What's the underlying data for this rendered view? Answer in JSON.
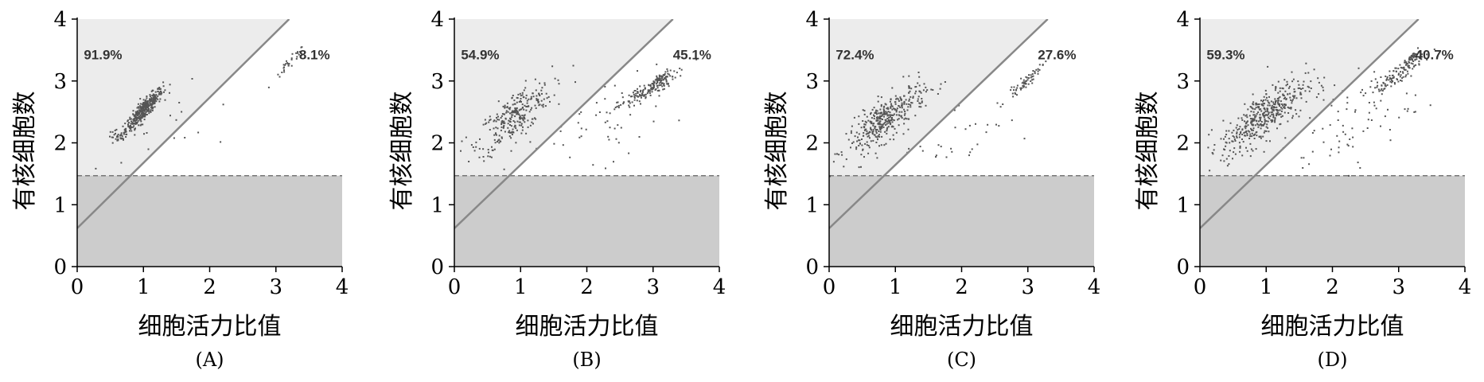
{
  "figure": {
    "xlabel": "细胞活力比值",
    "ylabel": "有核细胞数"
  },
  "chart_data": [
    {
      "type": "scatter",
      "panel_label": "(A)",
      "xlim": [
        0,
        4
      ],
      "ylim": [
        0,
        4
      ],
      "xticks": [
        "0",
        "1",
        "2",
        "3",
        "4"
      ],
      "yticks": [
        "0",
        "1",
        "2",
        "3",
        "4"
      ],
      "threshold_y": 1.47,
      "gate_line": {
        "x": [
          0,
          3.2
        ],
        "y": [
          0.62,
          4.0
        ]
      },
      "colors": {
        "upper_left": "#ececec",
        "lower": "#cccccc",
        "points": "#555555",
        "gate": "#888888"
      },
      "annotations": [
        {
          "text": "91.9%",
          "x": 0.1,
          "y": 3.35
        },
        {
          "text": "8.1%",
          "x": 3.35,
          "y": 3.35
        }
      ],
      "clusters": [
        {
          "cx": 1.0,
          "cy": 2.55,
          "sx": 0.14,
          "sy": 0.17,
          "corr": 0.9,
          "n": 380
        },
        {
          "cx": 0.6,
          "cy": 2.1,
          "sx": 0.08,
          "sy": 0.06,
          "corr": 0.0,
          "n": 30
        },
        {
          "cx": 3.2,
          "cy": 3.3,
          "sx": 0.12,
          "sy": 0.14,
          "corr": 0.95,
          "n": 30
        },
        {
          "cx": 1.6,
          "cy": 2.4,
          "sx": 0.6,
          "sy": 0.5,
          "corr": 0.3,
          "n": 20
        }
      ]
    },
    {
      "type": "scatter",
      "panel_label": "(B)",
      "xlim": [
        0,
        4
      ],
      "ylim": [
        0,
        4
      ],
      "xticks": [
        "0",
        "1",
        "2",
        "3",
        "4"
      ],
      "yticks": [
        "0",
        "1",
        "2",
        "3",
        "4"
      ],
      "threshold_y": 1.47,
      "gate_line": {
        "x": [
          0,
          3.3
        ],
        "y": [
          0.62,
          4.0
        ]
      },
      "colors": {
        "upper_left": "#ececec",
        "lower": "#cccccc",
        "points": "#555555",
        "gate": "#888888"
      },
      "annotations": [
        {
          "text": "54.9%",
          "x": 0.1,
          "y": 3.35
        },
        {
          "text": "45.1%",
          "x": 3.3,
          "y": 3.35
        }
      ],
      "clusters": [
        {
          "cx": 0.9,
          "cy": 2.45,
          "sx": 0.28,
          "sy": 0.28,
          "corr": 0.75,
          "n": 280
        },
        {
          "cx": 2.9,
          "cy": 2.85,
          "sx": 0.22,
          "sy": 0.15,
          "corr": 0.9,
          "n": 150
        },
        {
          "cx": 3.1,
          "cy": 3.05,
          "sx": 0.06,
          "sy": 0.06,
          "corr": 0.8,
          "n": 40
        },
        {
          "cx": 2.2,
          "cy": 2.3,
          "sx": 0.55,
          "sy": 0.45,
          "corr": 0.5,
          "n": 60
        }
      ]
    },
    {
      "type": "scatter",
      "panel_label": "(C)",
      "xlim": [
        0,
        4
      ],
      "ylim": [
        0,
        4
      ],
      "xticks": [
        "0",
        "1",
        "2",
        "3",
        "4"
      ],
      "yticks": [
        "0",
        "1",
        "2",
        "3",
        "4"
      ],
      "threshold_y": 1.47,
      "gate_line": {
        "x": [
          0,
          3.3
        ],
        "y": [
          0.62,
          4.0
        ]
      },
      "colors": {
        "upper_left": "#ececec",
        "lower": "#cccccc",
        "points": "#555555",
        "gate": "#888888"
      },
      "annotations": [
        {
          "text": "72.4%",
          "x": 0.1,
          "y": 3.35
        },
        {
          "text": "27.6%",
          "x": 3.15,
          "y": 3.35
        }
      ],
      "clusters": [
        {
          "cx": 0.85,
          "cy": 2.4,
          "sx": 0.3,
          "sy": 0.28,
          "corr": 0.8,
          "n": 380
        },
        {
          "cx": 2.95,
          "cy": 3.0,
          "sx": 0.14,
          "sy": 0.14,
          "corr": 0.95,
          "n": 60
        },
        {
          "cx": 2.0,
          "cy": 2.2,
          "sx": 0.5,
          "sy": 0.35,
          "corr": 0.6,
          "n": 30
        }
      ]
    },
    {
      "type": "scatter",
      "panel_label": "(D)",
      "xlim": [
        0,
        4
      ],
      "ylim": [
        0,
        4
      ],
      "xticks": [
        "0",
        "1",
        "2",
        "3",
        "4"
      ],
      "yticks": [
        "0",
        "1",
        "2",
        "3",
        "4"
      ],
      "threshold_y": 1.47,
      "gate_line": {
        "x": [
          0,
          3.3
        ],
        "y": [
          0.62,
          4.0
        ]
      },
      "colors": {
        "upper_left": "#ececec",
        "lower": "#cccccc",
        "points": "#555555",
        "gate": "#888888"
      },
      "annotations": [
        {
          "text": "59.3%",
          "x": 0.1,
          "y": 3.35
        },
        {
          "text": "40.7%",
          "x": 3.25,
          "y": 3.35
        }
      ],
      "clusters": [
        {
          "cx": 0.95,
          "cy": 2.45,
          "sx": 0.32,
          "sy": 0.3,
          "corr": 0.78,
          "n": 430
        },
        {
          "cx": 2.95,
          "cy": 3.1,
          "sx": 0.22,
          "sy": 0.18,
          "corr": 0.9,
          "n": 120
        },
        {
          "cx": 3.2,
          "cy": 3.4,
          "sx": 0.05,
          "sy": 0.05,
          "corr": 0.8,
          "n": 40
        },
        {
          "cx": 2.1,
          "cy": 2.3,
          "sx": 0.55,
          "sy": 0.45,
          "corr": 0.5,
          "n": 80
        }
      ]
    }
  ]
}
